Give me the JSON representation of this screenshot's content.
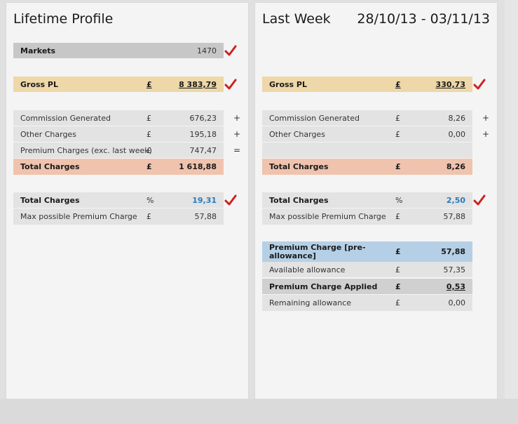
{
  "left": {
    "title": "Lifetime Profile",
    "markets": {
      "label": "Markets",
      "value": "1470"
    },
    "gross_pl": {
      "label": "Gross PL",
      "currency": "£",
      "value": "8 383,79"
    },
    "commission": {
      "label": "Commission Generated",
      "currency": "£",
      "value": "676,23",
      "op": "+"
    },
    "other": {
      "label": "Other Charges",
      "currency": "£",
      "value": "195,18",
      "op": "+"
    },
    "premium": {
      "label": "Premium Charges (exc. last week)",
      "currency": "£",
      "value": "747,47",
      "op": "="
    },
    "total_charges": {
      "label": "Total Charges",
      "currency": "£",
      "value": "1 618,88"
    },
    "total_pct": {
      "label": "Total Charges",
      "unit": "%",
      "value": "19,31"
    },
    "max_premium": {
      "label": "Max possible Premium Charge",
      "currency": "£",
      "value": "57,88"
    }
  },
  "right": {
    "title": "Last Week",
    "daterange": "28/10/13 - 03/11/13",
    "gross_pl": {
      "label": "Gross PL",
      "currency": "£",
      "value": "330,73"
    },
    "commission": {
      "label": "Commission Generated",
      "currency": "£",
      "value": "8,26",
      "op": "+"
    },
    "other": {
      "label": "Other Charges",
      "currency": "£",
      "value": "0,00",
      "op": "+"
    },
    "total_charges": {
      "label": "Total Charges",
      "currency": "£",
      "value": "8,26"
    },
    "total_pct": {
      "label": "Total Charges",
      "unit": "%",
      "value": "2,50"
    },
    "max_premium": {
      "label": "Max possible Premium Charge",
      "currency": "£",
      "value": "57,88"
    },
    "premium_pre": {
      "label": "Premium Charge [pre-allowance]",
      "currency": "£",
      "value": "57,88"
    },
    "available": {
      "label": "Available allowance",
      "currency": "£",
      "value": "57,35"
    },
    "premium_applied": {
      "label": "Premium Charge Applied",
      "currency": "£",
      "value": "0,53"
    },
    "remaining": {
      "label": "Remaining allowance",
      "currency": "£",
      "value": "0,00"
    }
  },
  "colors": {
    "check": "#cc2222",
    "accent_blue": "#2a7ab8"
  },
  "icons": {
    "check": "check-icon"
  }
}
